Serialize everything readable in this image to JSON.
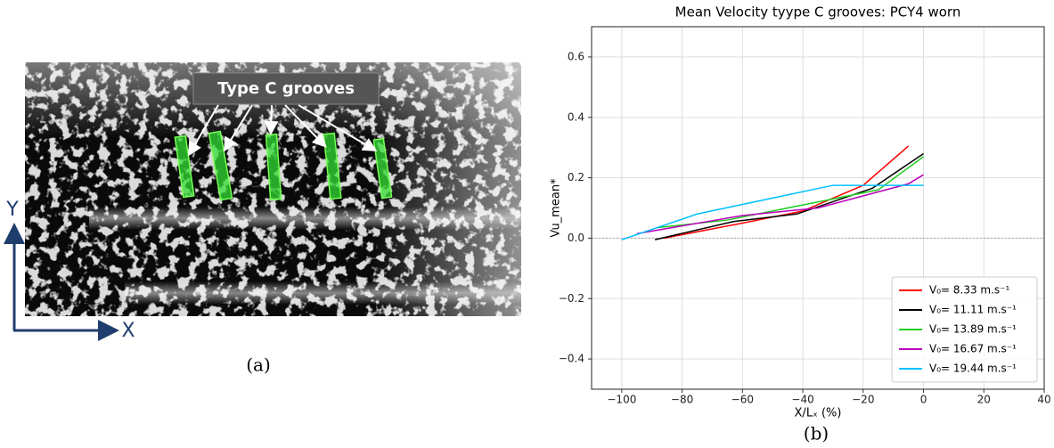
{
  "figure_a": {
    "label": "Type C grooves",
    "axis_y": "Y",
    "axis_x": "X",
    "caption": "(a)"
  },
  "chart_data": {
    "type": "line",
    "title": "Mean Velocity tyype C grooves: PCY4 worn",
    "x_label": "X/Lₓ (%)",
    "y_label": "Vu_mean*",
    "caption": "(b)",
    "xlim": [
      -110,
      40
    ],
    "ylim": [
      -0.5,
      0.7
    ],
    "xticks": [
      {
        "value": -100,
        "label": "−100"
      },
      {
        "value": -80,
        "label": "−80"
      },
      {
        "value": -60,
        "label": "−60"
      },
      {
        "value": -40,
        "label": "−40"
      },
      {
        "value": -20,
        "label": "−20"
      },
      0,
      20,
      40
    ],
    "yticks": [
      {
        "value": -0.4,
        "label": "−0.4"
      },
      {
        "value": -0.2,
        "label": "−0.2"
      },
      {
        "value": 0,
        "label": "0.0"
      },
      0.2,
      0.4,
      0.6
    ],
    "grid": true,
    "legend": "lower-right",
    "series": [
      {
        "name": "V₀= 8.33 m.s⁻¹",
        "color": "#ff0000",
        "x": [
          -86,
          -60,
          -40,
          -20,
          -5
        ],
        "values": [
          0,
          0.05,
          0.09,
          0.175,
          0.305
        ]
      },
      {
        "name": "V₀= 11.11 m.s⁻¹",
        "color": "#000000",
        "x": [
          -89,
          -63,
          -42,
          -17,
          0
        ],
        "values": [
          -0.005,
          0.055,
          0.08,
          0.165,
          0.28
        ]
      },
      {
        "name": "V₀= 13.89 m.s⁻¹",
        "color": "#22cc22",
        "x": [
          -88,
          -65,
          -40,
          -15,
          0
        ],
        "values": [
          0.035,
          0.06,
          0.11,
          0.16,
          0.27
        ]
      },
      {
        "name": "V₀= 16.67 m.s⁻¹",
        "color": "#bb00bb",
        "x": [
          -95,
          -60,
          -35,
          -5,
          0
        ],
        "values": [
          0.015,
          0.075,
          0.1,
          0.18,
          0.21
        ]
      },
      {
        "name": "V₀= 19.44 m.s⁻¹",
        "color": "#00c0ff",
        "x": [
          -100,
          -75,
          -30,
          -10,
          0
        ],
        "values": [
          -0.005,
          0.08,
          0.175,
          0.175,
          0.175
        ]
      }
    ]
  }
}
